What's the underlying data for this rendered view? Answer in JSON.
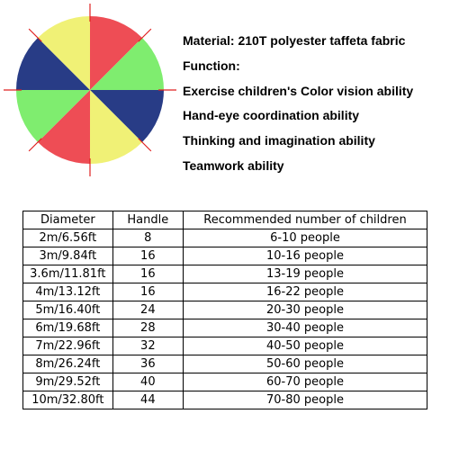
{
  "parachute": {
    "icon": "play-parachute",
    "colors": {
      "red": "#ee4d55",
      "yellow": "#f0f176",
      "green": "#7fed6f",
      "blue": "#283c86",
      "accent_line": "#e02020"
    }
  },
  "features": {
    "material": "Material:  210T polyester taffeta fabric",
    "function_heading": "Function:",
    "items": [
      "Exercise children's Color vision ability",
      "Hand-eye coordination ability",
      "Thinking and imagination ability",
      "Teamwork ability"
    ]
  },
  "table": {
    "headers": [
      "Diameter",
      "Handle",
      "Recommended number of children"
    ],
    "rows": [
      [
        "2m/6.56ft",
        "8",
        "6-10 people"
      ],
      [
        "3m/9.84ft",
        "16",
        "10-16 people"
      ],
      [
        "3.6m/11.81ft",
        "16",
        "13-19 people"
      ],
      [
        "4m/13.12ft",
        "16",
        "16-22 people"
      ],
      [
        "5m/16.40ft",
        "24",
        "20-30 people"
      ],
      [
        "6m/19.68ft",
        "28",
        "30-40 people"
      ],
      [
        "7m/22.96ft",
        "32",
        "40-50 people"
      ],
      [
        "8m/26.24ft",
        "36",
        "50-60 people"
      ],
      [
        "9m/29.52ft",
        "40",
        "60-70 people"
      ],
      [
        "10m/32.80ft",
        "44",
        "70-80 people"
      ]
    ]
  }
}
